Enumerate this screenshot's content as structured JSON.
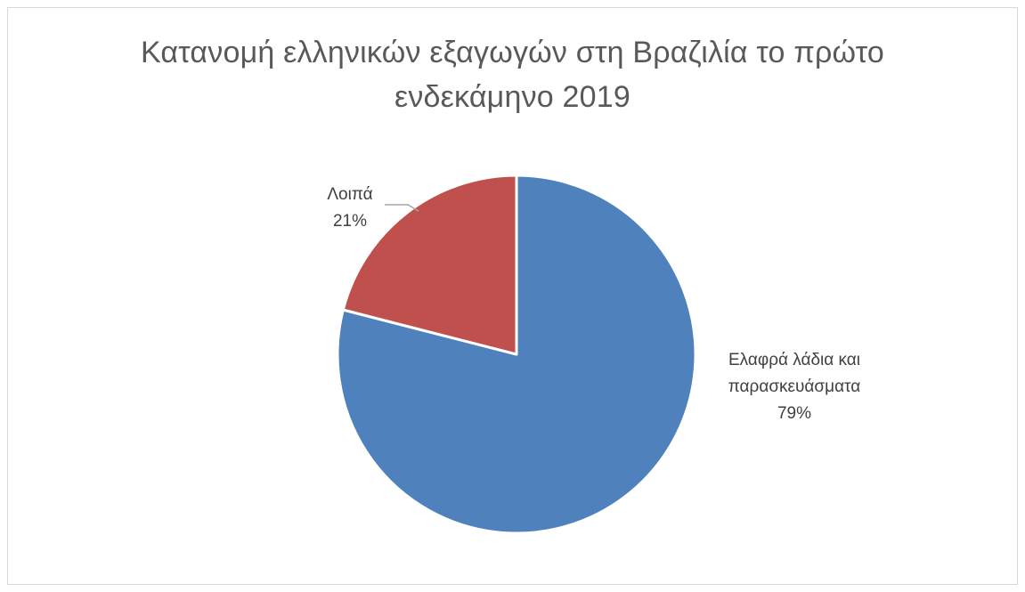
{
  "chart_data": {
    "type": "pie",
    "title": "Κατανομή ελληνικών εξαγωγών στη Βραζιλία το πρώτο ενδεκάμηνο 2019",
    "title_lines": [
      "Κατανομή ελληνικών εξαγωγών στη Βραζιλία το πρώτο",
      "ενδεκάμηνο 2019"
    ],
    "slices": [
      {
        "name": "Ελαφρά λάδια και παρασκευάσματα",
        "label_lines": [
          "Ελαφρά λάδια και",
          "παρασκευάσματα"
        ],
        "value": 79,
        "percent_label": "79%",
        "color": "#4f81bd"
      },
      {
        "name": "Λοιπά",
        "label_lines": [
          "Λοιπά"
        ],
        "value": 21,
        "percent_label": "21%",
        "color": "#c0504d"
      }
    ],
    "start_angle_deg": 0,
    "direction": "clockwise",
    "legend": "none",
    "leader_line_color": "#a6a6a6"
  }
}
